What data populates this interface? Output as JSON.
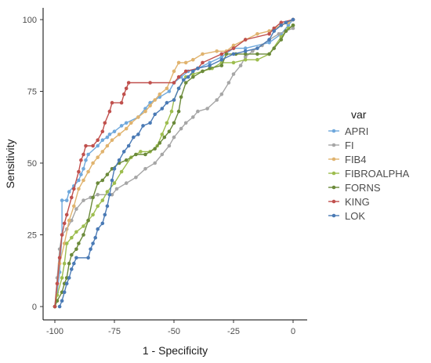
{
  "chart_data": {
    "type": "line",
    "xlabel": "1 - Specificity",
    "ylabel": "Sensitivity",
    "xlim": [
      -100,
      0
    ],
    "ylim": [
      0,
      100
    ],
    "x_ticks": [
      -100,
      -75,
      -50,
      -25,
      0
    ],
    "y_ticks": [
      0,
      25,
      50,
      75,
      100
    ],
    "x_tick_labels": [
      "-100",
      "-75",
      "-50",
      "-25",
      "0"
    ],
    "y_tick_labels": [
      "0",
      "25",
      "50",
      "75",
      "100"
    ],
    "grid": false,
    "legend": {
      "title": "var",
      "position": "right"
    },
    "series": [
      {
        "name": "APRI",
        "color": "#6fa8dc",
        "points": [
          [
            -100,
            0
          ],
          [
            -99,
            5
          ],
          [
            -98,
            12
          ],
          [
            -97,
            25
          ],
          [
            -97,
            37
          ],
          [
            -95,
            37
          ],
          [
            -94,
            40
          ],
          [
            -92,
            42
          ],
          [
            -90,
            44
          ],
          [
            -89,
            46
          ],
          [
            -88,
            48
          ],
          [
            -87,
            51
          ],
          [
            -86,
            53
          ],
          [
            -82,
            56
          ],
          [
            -80,
            58
          ],
          [
            -78,
            59
          ],
          [
            -77,
            60
          ],
          [
            -75,
            61
          ],
          [
            -72,
            63
          ],
          [
            -70,
            64
          ],
          [
            -65,
            66
          ],
          [
            -62,
            69
          ],
          [
            -60,
            71
          ],
          [
            -56,
            73
          ],
          [
            -52,
            75
          ],
          [
            -50,
            78
          ],
          [
            -47,
            80
          ],
          [
            -44,
            82
          ],
          [
            -40,
            83
          ],
          [
            -35,
            85
          ],
          [
            -30,
            87
          ],
          [
            -25,
            90
          ],
          [
            -20,
            90
          ],
          [
            -10,
            92
          ],
          [
            -5,
            95
          ],
          [
            -2,
            98
          ],
          [
            0,
            100
          ]
        ]
      },
      {
        "name": "FI",
        "color": "#a6a6a6",
        "points": [
          [
            -100,
            0
          ],
          [
            -99,
            10
          ],
          [
            -98,
            20
          ],
          [
            -97,
            25
          ],
          [
            -95,
            27
          ],
          [
            -93,
            30
          ],
          [
            -91,
            34
          ],
          [
            -88,
            37
          ],
          [
            -85,
            38
          ],
          [
            -82,
            39
          ],
          [
            -76,
            39
          ],
          [
            -74,
            41
          ],
          [
            -70,
            43
          ],
          [
            -66,
            45
          ],
          [
            -62,
            48
          ],
          [
            -58,
            50
          ],
          [
            -55,
            53
          ],
          [
            -52,
            56
          ],
          [
            -50,
            59
          ],
          [
            -47,
            62
          ],
          [
            -45,
            64
          ],
          [
            -42,
            66
          ],
          [
            -40,
            68
          ],
          [
            -36,
            69
          ],
          [
            -32,
            72
          ],
          [
            -30,
            74
          ],
          [
            -27,
            78
          ],
          [
            -25,
            81
          ],
          [
            -22,
            84
          ],
          [
            -20,
            87
          ],
          [
            -17,
            89
          ],
          [
            -13,
            91
          ],
          [
            -10,
            93
          ],
          [
            -6,
            95
          ],
          [
            -3,
            96
          ],
          [
            0,
            97
          ]
        ]
      },
      {
        "name": "FIB4",
        "color": "#e0b36e",
        "points": [
          [
            -100,
            0
          ],
          [
            -99,
            8
          ],
          [
            -98,
            15
          ],
          [
            -96,
            22
          ],
          [
            -94,
            30
          ],
          [
            -92,
            35
          ],
          [
            -90,
            41
          ],
          [
            -88,
            44
          ],
          [
            -86,
            47
          ],
          [
            -84,
            50
          ],
          [
            -82,
            52
          ],
          [
            -80,
            54
          ],
          [
            -78,
            56
          ],
          [
            -76,
            58
          ],
          [
            -73,
            60
          ],
          [
            -70,
            62
          ],
          [
            -68,
            64
          ],
          [
            -65,
            66
          ],
          [
            -62,
            68
          ],
          [
            -60,
            70
          ],
          [
            -58,
            72
          ],
          [
            -56,
            74
          ],
          [
            -53,
            76
          ],
          [
            -50,
            82
          ],
          [
            -48,
            85
          ],
          [
            -45,
            85
          ],
          [
            -42,
            86
          ],
          [
            -38,
            88
          ],
          [
            -32,
            89
          ],
          [
            -28,
            89
          ],
          [
            -25,
            91
          ],
          [
            -20,
            93
          ],
          [
            -15,
            95
          ],
          [
            -10,
            96
          ],
          [
            -5,
            98
          ],
          [
            -2,
            99
          ],
          [
            0,
            100
          ]
        ]
      },
      {
        "name": "FIBROALPHA",
        "color": "#9dbd4e",
        "points": [
          [
            -100,
            0
          ],
          [
            -99,
            4
          ],
          [
            -97,
            10
          ],
          [
            -96,
            15
          ],
          [
            -95,
            22
          ],
          [
            -93,
            24
          ],
          [
            -91,
            26
          ],
          [
            -88,
            28
          ],
          [
            -86,
            30
          ],
          [
            -84,
            32
          ],
          [
            -82,
            35
          ],
          [
            -80,
            37
          ],
          [
            -78,
            40
          ],
          [
            -75,
            43
          ],
          [
            -72,
            47
          ],
          [
            -68,
            52
          ],
          [
            -64,
            54
          ],
          [
            -60,
            54
          ],
          [
            -57,
            56
          ],
          [
            -55,
            60
          ],
          [
            -53,
            64
          ],
          [
            -51,
            68
          ],
          [
            -50,
            72
          ],
          [
            -48,
            76
          ],
          [
            -45,
            80
          ],
          [
            -42,
            81
          ],
          [
            -38,
            82
          ],
          [
            -34,
            83
          ],
          [
            -30,
            85
          ],
          [
            -25,
            85
          ],
          [
            -20,
            86
          ],
          [
            -15,
            86
          ],
          [
            -10,
            88
          ],
          [
            -5,
            94
          ],
          [
            -2,
            97
          ],
          [
            0,
            98
          ]
        ]
      },
      {
        "name": "FORNS",
        "color": "#6b8a3a",
        "points": [
          [
            -100,
            0
          ],
          [
            -99,
            2
          ],
          [
            -97,
            5
          ],
          [
            -96,
            8
          ],
          [
            -95,
            10
          ],
          [
            -94,
            15
          ],
          [
            -93,
            18
          ],
          [
            -91,
            20
          ],
          [
            -90,
            22
          ],
          [
            -88,
            25
          ],
          [
            -86,
            30
          ],
          [
            -84,
            38
          ],
          [
            -82,
            43
          ],
          [
            -80,
            44
          ],
          [
            -78,
            46
          ],
          [
            -76,
            48
          ],
          [
            -73,
            50
          ],
          [
            -70,
            51
          ],
          [
            -66,
            53
          ],
          [
            -62,
            53
          ],
          [
            -58,
            55
          ],
          [
            -56,
            57
          ],
          [
            -54,
            59
          ],
          [
            -52,
            61
          ],
          [
            -50,
            64
          ],
          [
            -48,
            68
          ],
          [
            -47,
            73
          ],
          [
            -45,
            78
          ],
          [
            -42,
            80
          ],
          [
            -38,
            82
          ],
          [
            -35,
            83
          ],
          [
            -30,
            84
          ],
          [
            -28,
            88
          ],
          [
            -24,
            88
          ],
          [
            -20,
            88
          ],
          [
            -15,
            88
          ],
          [
            -10,
            88
          ],
          [
            -8,
            90
          ],
          [
            -5,
            93
          ],
          [
            -3,
            96
          ],
          [
            0,
            98
          ]
        ]
      },
      {
        "name": "KING",
        "color": "#c0504d",
        "points": [
          [
            -100,
            0
          ],
          [
            -99,
            8
          ],
          [
            -98,
            17
          ],
          [
            -97,
            25
          ],
          [
            -96,
            29
          ],
          [
            -95,
            32
          ],
          [
            -93,
            38
          ],
          [
            -92,
            41
          ],
          [
            -90,
            47
          ],
          [
            -89,
            51
          ],
          [
            -88,
            53
          ],
          [
            -87,
            56
          ],
          [
            -84,
            56
          ],
          [
            -82,
            58
          ],
          [
            -80,
            61
          ],
          [
            -79,
            64
          ],
          [
            -77,
            68
          ],
          [
            -76,
            71
          ],
          [
            -72,
            71
          ],
          [
            -71,
            74
          ],
          [
            -70,
            76
          ],
          [
            -69,
            78
          ],
          [
            -60,
            78
          ],
          [
            -50,
            78
          ],
          [
            -48,
            80
          ],
          [
            -45,
            82
          ],
          [
            -40,
            83
          ],
          [
            -38,
            85
          ],
          [
            -30,
            88
          ],
          [
            -25,
            90
          ],
          [
            -20,
            93
          ],
          [
            -10,
            95
          ],
          [
            -8,
            97
          ],
          [
            -5,
            99
          ],
          [
            0,
            100
          ]
        ]
      },
      {
        "name": "LOK",
        "color": "#4a7ab5",
        "points": [
          [
            -98,
            0
          ],
          [
            -97,
            2
          ],
          [
            -96,
            5
          ],
          [
            -95,
            8
          ],
          [
            -94,
            10
          ],
          [
            -93,
            13
          ],
          [
            -92,
            15
          ],
          [
            -91,
            17
          ],
          [
            -86,
            17
          ],
          [
            -85,
            20
          ],
          [
            -84,
            22
          ],
          [
            -83,
            24
          ],
          [
            -82,
            27
          ],
          [
            -80,
            29
          ],
          [
            -79,
            32
          ],
          [
            -78,
            35
          ],
          [
            -77,
            39
          ],
          [
            -76,
            44
          ],
          [
            -75,
            48
          ],
          [
            -73,
            51
          ],
          [
            -71,
            54
          ],
          [
            -69,
            56
          ],
          [
            -67,
            59
          ],
          [
            -65,
            60
          ],
          [
            -63,
            63
          ],
          [
            -60,
            64
          ],
          [
            -58,
            67
          ],
          [
            -55,
            69
          ],
          [
            -53,
            71
          ],
          [
            -50,
            72
          ],
          [
            -48,
            76
          ],
          [
            -46,
            79
          ],
          [
            -44,
            80
          ],
          [
            -42,
            82
          ],
          [
            -40,
            83
          ],
          [
            -35,
            84
          ],
          [
            -30,
            86
          ],
          [
            -25,
            88
          ],
          [
            -20,
            89
          ],
          [
            -15,
            90
          ],
          [
            -10,
            93
          ],
          [
            -8,
            96
          ],
          [
            -5,
            98
          ],
          [
            -3,
            99
          ],
          [
            0,
            100
          ]
        ]
      }
    ]
  }
}
